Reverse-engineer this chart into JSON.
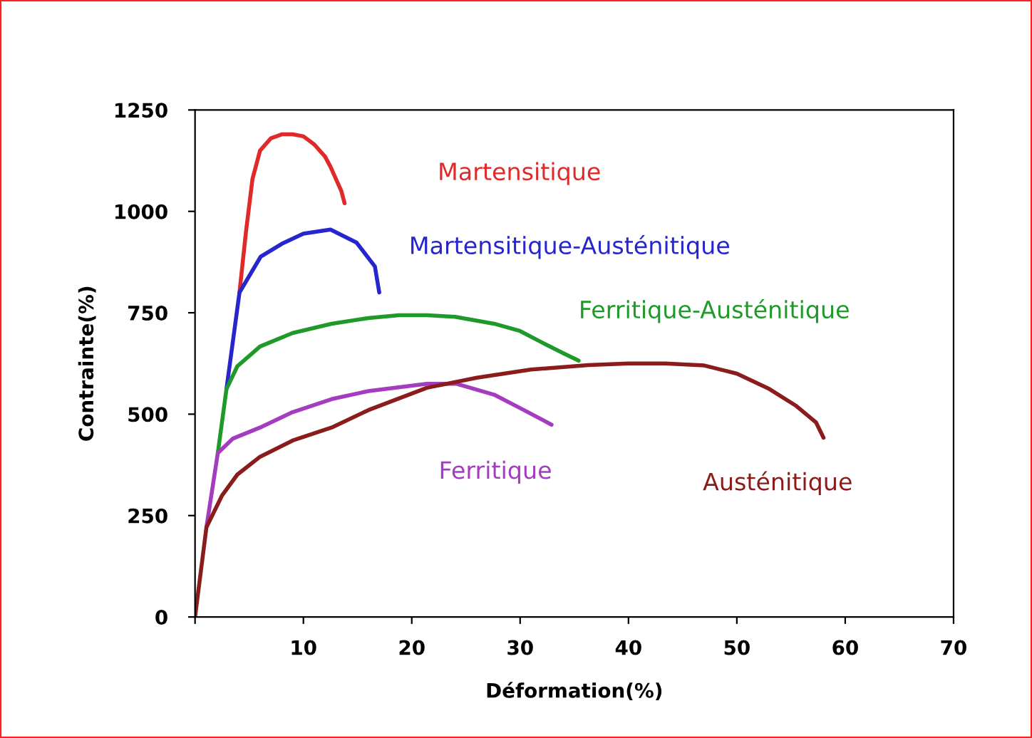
{
  "chart_data": {
    "type": "line",
    "xlabel": "Déformation(%)",
    "ylabel": "Contrainte(%)",
    "xlim": [
      0,
      70
    ],
    "ylim": [
      0,
      1250
    ],
    "xticks": [
      {
        "value": 0,
        "label": null
      },
      10,
      20,
      30,
      40,
      50,
      60,
      70
    ],
    "yticks": [
      0,
      250,
      500,
      750,
      1000,
      1250
    ],
    "grid": false,
    "legend": false,
    "marker": "none",
    "line_style": "solid",
    "series": [
      {
        "name": "Martensitique",
        "color": "#e02a2a",
        "x": [
          4.1,
          4.7,
          5.3,
          6,
          7,
          8,
          9,
          10,
          11,
          12,
          12.5,
          13.5,
          13.8
        ],
        "values": [
          800,
          950,
          1080,
          1150,
          1180,
          1190,
          1190,
          1185,
          1165,
          1135,
          1110,
          1050,
          1020
        ]
      },
      {
        "name": "Martensitique-Austénitique",
        "color": "#2626cc",
        "x": [
          2.9,
          4.1,
          6.05,
          8,
          10,
          12.5,
          14.9,
          16.6,
          17
        ],
        "values": [
          562,
          800,
          888,
          920,
          945,
          955,
          923,
          864,
          800
        ]
      },
      {
        "name": "Ferritique-Austénitique",
        "color": "#1f9a2a",
        "x": [
          2.1,
          2.9,
          3.9,
          6,
          9,
          12.6,
          16,
          18.8,
          21.4,
          24,
          27.6,
          30,
          32,
          34,
          35.4
        ],
        "values": [
          404,
          562,
          618,
          667,
          700,
          723,
          737,
          744,
          744,
          740,
          723,
          705,
          677,
          650,
          632
        ]
      },
      {
        "name": "Ferritique",
        "color": "#a43cbf",
        "x": [
          1.05,
          2.1,
          3.5,
          6,
          9,
          12.6,
          16,
          21.4,
          24.1,
          27.6,
          30,
          32.9
        ],
        "values": [
          221,
          404,
          440,
          467,
          505,
          537,
          557,
          575,
          575,
          548,
          515,
          474
        ]
      },
      {
        "name": "Austénitique",
        "color": "#8b1c1c",
        "x": [
          0,
          1.05,
          2.5,
          3.9,
          6,
          9,
          12.6,
          16,
          21.4,
          26,
          31,
          36.3,
          40,
          43.4,
          47,
          50,
          53,
          55.5,
          57.3,
          58
        ],
        "values": [
          0,
          221,
          300,
          351,
          395,
          435,
          467,
          510,
          565,
          590,
          610,
          621,
          625,
          625,
          620,
          600,
          562,
          520,
          480,
          442
        ]
      }
    ]
  }
}
